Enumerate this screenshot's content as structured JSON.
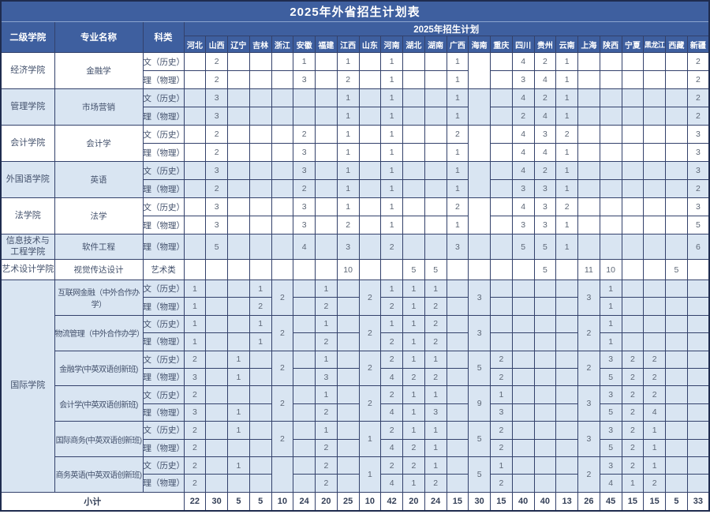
{
  "title": "2025年外省招生计划表",
  "header": {
    "col_college": "二级学院",
    "col_major": "专业名称",
    "col_category": "科类",
    "plan_group": "2025年招生计划",
    "provinces": [
      "河北",
      "山西",
      "辽宁",
      "吉林",
      "浙江",
      "安徽",
      "福建",
      "江西",
      "山东",
      "河南",
      "湖北",
      "湖南",
      "广西",
      "海南",
      "重庆",
      "四川",
      "贵州",
      "云南",
      "上海",
      "陕西",
      "宁夏",
      "黑龙江",
      "西藏",
      "新疆"
    ]
  },
  "colors": {
    "header_blue": "#3e5f9f",
    "row_shade": "#d9e5f2",
    "border": "#33416b"
  },
  "groups": [
    {
      "college": "经济学院",
      "shade": false,
      "majors": [
        {
          "name": "金融学",
          "merged": [
            {
              "col": 13,
              "value": ""
            }
          ],
          "rows": [
            {
              "category": "文（历史）",
              "cells": {
                "1": "2",
                "5": "1",
                "7": "1",
                "9": "1",
                "12": "1",
                "15": "4",
                "16": "2",
                "17": "1",
                "23": "2"
              }
            },
            {
              "category": "理（物理）",
              "cells": {
                "1": "2",
                "5": "3",
                "7": "2",
                "9": "1",
                "12": "1",
                "15": "3",
                "16": "4",
                "17": "1",
                "23": "2"
              }
            }
          ]
        }
      ]
    },
    {
      "college": "管理学院",
      "shade": true,
      "majors": [
        {
          "name": "市场营销",
          "merged": [
            {
              "col": 13,
              "value": ""
            }
          ],
          "rows": [
            {
              "category": "文（历史）",
              "cells": {
                "1": "3",
                "7": "1",
                "9": "1",
                "12": "1",
                "15": "4",
                "16": "2",
                "17": "1",
                "23": "2"
              }
            },
            {
              "category": "理（物理）",
              "cells": {
                "1": "3",
                "7": "1",
                "9": "1",
                "12": "1",
                "15": "2",
                "16": "4",
                "17": "1",
                "23": "2"
              }
            }
          ]
        }
      ]
    },
    {
      "college": "会计学院",
      "shade": false,
      "majors": [
        {
          "name": "会计学",
          "merged": [
            {
              "col": 13,
              "value": ""
            }
          ],
          "rows": [
            {
              "category": "文（历史）",
              "cells": {
                "1": "2",
                "5": "2",
                "7": "1",
                "9": "1",
                "12": "2",
                "15": "4",
                "16": "3",
                "17": "2",
                "23": "3"
              }
            },
            {
              "category": "理（物理）",
              "cells": {
                "1": "2",
                "5": "3",
                "7": "1",
                "9": "1",
                "12": "1",
                "15": "4",
                "16": "4",
                "17": "1",
                "23": "3"
              }
            }
          ]
        }
      ]
    },
    {
      "college": "外国语学院",
      "shade": true,
      "majors": [
        {
          "name": "英语",
          "merged": [
            {
              "col": 13,
              "value": ""
            }
          ],
          "rows": [
            {
              "category": "文（历史）",
              "cells": {
                "1": "3",
                "5": "3",
                "7": "1",
                "9": "1",
                "12": "1",
                "15": "4",
                "16": "2",
                "17": "1",
                "23": "3"
              }
            },
            {
              "category": "理（物理）",
              "cells": {
                "1": "2",
                "5": "2",
                "7": "1",
                "9": "1",
                "12": "1",
                "15": "3",
                "16": "3",
                "17": "1",
                "23": "2"
              }
            }
          ]
        }
      ]
    },
    {
      "college": "法学院",
      "shade": false,
      "majors": [
        {
          "name": "法学",
          "merged": [
            {
              "col": 13,
              "value": ""
            }
          ],
          "rows": [
            {
              "category": "文（历史）",
              "cells": {
                "1": "3",
                "5": "3",
                "7": "1",
                "9": "1",
                "12": "2",
                "15": "4",
                "16": "3",
                "17": "2",
                "23": "3"
              }
            },
            {
              "category": "理（物理）",
              "cells": {
                "1": "3",
                "5": "3",
                "7": "2",
                "9": "1",
                "12": "1",
                "15": "3",
                "16": "3",
                "17": "1",
                "23": "5"
              }
            }
          ]
        }
      ]
    },
    {
      "college": "信息技术与\n工程学院",
      "shade": true,
      "majors": [
        {
          "name": "软件工程",
          "merged": [],
          "rows": [
            {
              "category": "理（物理）",
              "cells": {
                "1": "5",
                "5": "4",
                "7": "3",
                "9": "2",
                "12": "3",
                "15": "5",
                "16": "5",
                "17": "1",
                "23": "6"
              }
            }
          ]
        }
      ]
    },
    {
      "college": "艺术设计学院",
      "shade": false,
      "majors": [
        {
          "name": "视觉传达设计",
          "merged": [],
          "rows": [
            {
              "category": "艺术类",
              "cells": {
                "7": "10",
                "10": "5",
                "11": "5",
                "16": "5",
                "18": "11",
                "19": "10",
                "22": "5"
              }
            }
          ]
        }
      ]
    },
    {
      "college": "国际学院",
      "shade": true,
      "majors": [
        {
          "name": "互联网金融（中外合作办学）",
          "merged": [
            {
              "col": 4,
              "value": "2"
            },
            {
              "col": 8,
              "value": "2"
            },
            {
              "col": 13,
              "value": "3"
            },
            {
              "col": 18,
              "value": "3"
            }
          ],
          "rows": [
            {
              "category": "文（历史）",
              "cells": {
                "0": "1",
                "3": "1",
                "6": "1",
                "9": "1",
                "10": "1",
                "11": "1",
                "19": "1"
              }
            },
            {
              "category": "理（物理）",
              "cells": {
                "0": "1",
                "3": "2",
                "6": "2",
                "9": "2",
                "10": "1",
                "11": "2",
                "19": "1"
              }
            }
          ]
        },
        {
          "name": "物流管理（中外合作办学）",
          "merged": [
            {
              "col": 4,
              "value": "2"
            },
            {
              "col": 8,
              "value": "2"
            },
            {
              "col": 13,
              "value": "3"
            },
            {
              "col": 18,
              "value": "2"
            }
          ],
          "rows": [
            {
              "category": "文（历史）",
              "cells": {
                "0": "1",
                "3": "1",
                "6": "1",
                "9": "1",
                "10": "1",
                "11": "2",
                "19": "1"
              }
            },
            {
              "category": "理（物理）",
              "cells": {
                "0": "1",
                "3": "1",
                "6": "2",
                "9": "2",
                "10": "1",
                "11": "2",
                "19": "1"
              }
            }
          ]
        },
        {
          "name": "金融学(中英双语创新班)",
          "merged": [
            {
              "col": 4,
              "value": "2"
            },
            {
              "col": 8,
              "value": "2"
            },
            {
              "col": 13,
              "value": "5"
            },
            {
              "col": 18,
              "value": "2"
            }
          ],
          "rows": [
            {
              "category": "文（历史）",
              "cells": {
                "0": "2",
                "2": "1",
                "6": "1",
                "9": "2",
                "10": "1",
                "11": "1",
                "14": "2",
                "19": "3",
                "20": "2",
                "21": "2"
              }
            },
            {
              "category": "理（物理）",
              "cells": {
                "0": "3",
                "2": "1",
                "6": "3",
                "9": "4",
                "10": "2",
                "11": "2",
                "14": "2",
                "19": "5",
                "20": "2",
                "21": "2"
              }
            }
          ]
        },
        {
          "name": "会计学(中英双语创新班)",
          "merged": [
            {
              "col": 4,
              "value": "2"
            },
            {
              "col": 8,
              "value": "2"
            },
            {
              "col": 13,
              "value": "9"
            },
            {
              "col": 18,
              "value": "3"
            }
          ],
          "rows": [
            {
              "category": "文（历史）",
              "cells": {
                "0": "2",
                "6": "1",
                "9": "2",
                "10": "1",
                "11": "1",
                "14": "1",
                "19": "3",
                "20": "2",
                "21": "2"
              }
            },
            {
              "category": "理（物理）",
              "cells": {
                "0": "3",
                "2": "1",
                "6": "2",
                "9": "4",
                "10": "1",
                "11": "3",
                "14": "3",
                "19": "5",
                "20": "2",
                "21": "4"
              }
            }
          ]
        },
        {
          "name": "国际商务(中英双语创新班)",
          "merged": [
            {
              "col": 4,
              "value": "2"
            },
            {
              "col": 8,
              "value": "1"
            },
            {
              "col": 13,
              "value": "5"
            },
            {
              "col": 18,
              "value": "3"
            }
          ],
          "rows": [
            {
              "category": "文（历史）",
              "cells": {
                "0": "2",
                "2": "1",
                "6": "1",
                "9": "2",
                "10": "1",
                "11": "1",
                "14": "2",
                "19": "3",
                "20": "2",
                "21": "1"
              }
            },
            {
              "category": "理（物理）",
              "cells": {
                "0": "2",
                "6": "2",
                "9": "4",
                "10": "2",
                "11": "1",
                "14": "2",
                "19": "5",
                "20": "2",
                "21": "1"
              }
            }
          ]
        },
        {
          "name": "商务英语(中英双语创新班)",
          "merged": [
            {
              "col": 4,
              "value": ""
            },
            {
              "col": 8,
              "value": "1"
            },
            {
              "col": 13,
              "value": "5"
            },
            {
              "col": 18,
              "value": "2"
            }
          ],
          "rows": [
            {
              "category": "文（历史）",
              "cells": {
                "0": "2",
                "2": "1",
                "6": "2",
                "9": "2",
                "10": "2",
                "11": "1",
                "14": "1",
                "19": "3",
                "20": "2",
                "21": "1"
              }
            },
            {
              "category": "理（物理）",
              "cells": {
                "0": "2",
                "6": "2",
                "9": "4",
                "10": "1",
                "11": "2",
                "14": "2",
                "19": "4",
                "20": "1",
                "21": "2"
              }
            }
          ]
        }
      ]
    }
  ],
  "subtotal": {
    "label": "小计",
    "values": [
      "22",
      "30",
      "5",
      "5",
      "10",
      "24",
      "20",
      "25",
      "10",
      "42",
      "20",
      "24",
      "15",
      "30",
      "15",
      "40",
      "40",
      "13",
      "26",
      "45",
      "15",
      "15",
      "5",
      "33"
    ]
  }
}
